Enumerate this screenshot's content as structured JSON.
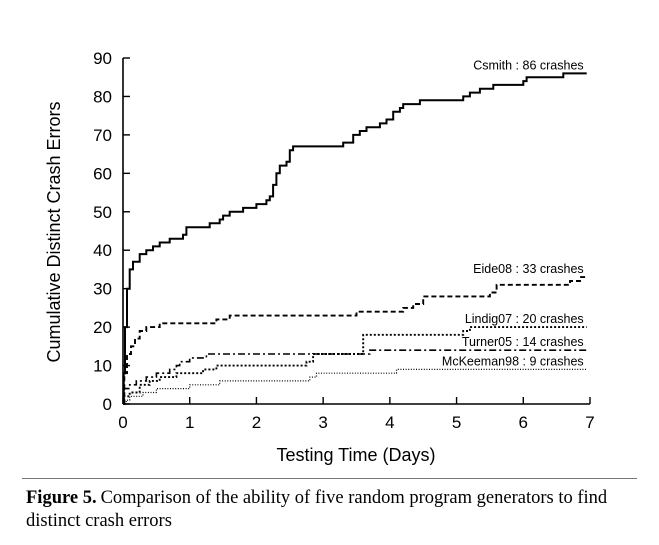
{
  "chart_data": {
    "type": "line",
    "xlabel": "Testing Time (Days)",
    "ylabel": "Cumulative Distinct Crash Errors",
    "xlim": [
      0,
      7
    ],
    "ylim": [
      0,
      90
    ],
    "xticks": [
      0,
      1,
      2,
      3,
      4,
      5,
      6,
      7
    ],
    "yticks": [
      0,
      10,
      20,
      30,
      40,
      50,
      60,
      70,
      80,
      90
    ],
    "grid": false,
    "legend": "inline labels at end of each series",
    "series": [
      {
        "name": "Csmith : 86 crashes",
        "style": "solid",
        "points": [
          [
            0,
            0
          ],
          [
            0.01,
            8
          ],
          [
            0.03,
            20
          ],
          [
            0.06,
            30
          ],
          [
            0.1,
            35
          ],
          [
            0.15,
            37
          ],
          [
            0.25,
            39
          ],
          [
            0.35,
            40
          ],
          [
            0.45,
            41
          ],
          [
            0.55,
            42
          ],
          [
            0.6,
            42
          ],
          [
            0.7,
            43
          ],
          [
            0.85,
            43
          ],
          [
            0.9,
            44
          ],
          [
            0.95,
            46
          ],
          [
            1.3,
            46
          ],
          [
            1.3,
            47
          ],
          [
            1.45,
            48
          ],
          [
            1.5,
            49
          ],
          [
            1.6,
            50
          ],
          [
            1.8,
            51
          ],
          [
            1.9,
            51
          ],
          [
            2.0,
            52
          ],
          [
            2.15,
            53
          ],
          [
            2.2,
            54
          ],
          [
            2.25,
            57
          ],
          [
            2.3,
            60
          ],
          [
            2.35,
            62
          ],
          [
            2.45,
            63
          ],
          [
            2.5,
            66
          ],
          [
            2.55,
            67
          ],
          [
            3.2,
            67
          ],
          [
            3.3,
            68
          ],
          [
            3.45,
            70
          ],
          [
            3.55,
            71
          ],
          [
            3.65,
            72
          ],
          [
            3.85,
            73
          ],
          [
            3.95,
            74
          ],
          [
            4.05,
            76
          ],
          [
            4.15,
            77
          ],
          [
            4.2,
            78
          ],
          [
            4.45,
            79
          ],
          [
            5.0,
            79
          ],
          [
            5.1,
            80
          ],
          [
            5.2,
            81
          ],
          [
            5.35,
            82
          ],
          [
            5.45,
            82
          ],
          [
            5.55,
            83
          ],
          [
            6.0,
            84
          ],
          [
            6.05,
            85
          ],
          [
            6.5,
            85
          ],
          [
            6.6,
            86
          ],
          [
            6.95,
            86
          ]
        ]
      },
      {
        "name": "Eide08 : 33 crashes",
        "style": "dashed",
        "points": [
          [
            0,
            0
          ],
          [
            0.02,
            8
          ],
          [
            0.06,
            13
          ],
          [
            0.12,
            15
          ],
          [
            0.18,
            17
          ],
          [
            0.25,
            19
          ],
          [
            0.35,
            20
          ],
          [
            0.55,
            21
          ],
          [
            1.3,
            21
          ],
          [
            1.4,
            22
          ],
          [
            1.6,
            23
          ],
          [
            3.4,
            23
          ],
          [
            3.5,
            24
          ],
          [
            4.2,
            25
          ],
          [
            4.35,
            26
          ],
          [
            4.5,
            28
          ],
          [
            5.5,
            29
          ],
          [
            5.6,
            31
          ],
          [
            6.6,
            31
          ],
          [
            6.7,
            32
          ],
          [
            6.85,
            33
          ],
          [
            6.95,
            33
          ]
        ]
      },
      {
        "name": "Lindig07 : 20 crashes",
        "style": "dotted",
        "points": [
          [
            0,
            0
          ],
          [
            0.02,
            2
          ],
          [
            0.1,
            3
          ],
          [
            0.25,
            5
          ],
          [
            0.4,
            6
          ],
          [
            0.55,
            7
          ],
          [
            0.7,
            7
          ],
          [
            0.8,
            8
          ],
          [
            1.0,
            8
          ],
          [
            1.2,
            9
          ],
          [
            1.3,
            9
          ],
          [
            1.4,
            10
          ],
          [
            2.7,
            10
          ],
          [
            2.75,
            11
          ],
          [
            2.85,
            13
          ],
          [
            3.55,
            13
          ],
          [
            3.6,
            18
          ],
          [
            5.0,
            18
          ],
          [
            5.1,
            19
          ],
          [
            5.2,
            20
          ],
          [
            6.95,
            20
          ]
        ]
      },
      {
        "name": "Turner05 : 14 crashes",
        "style": "dashdot",
        "points": [
          [
            0,
            0
          ],
          [
            0.02,
            4
          ],
          [
            0.1,
            5
          ],
          [
            0.2,
            6
          ],
          [
            0.35,
            7
          ],
          [
            0.5,
            8
          ],
          [
            0.7,
            9
          ],
          [
            0.8,
            10
          ],
          [
            0.85,
            11
          ],
          [
            1.0,
            12
          ],
          [
            1.25,
            13
          ],
          [
            3.6,
            13
          ],
          [
            3.7,
            14
          ],
          [
            6.95,
            14
          ]
        ]
      },
      {
        "name": "McKeeman98 : 9 crashes",
        "style": "finedotted",
        "points": [
          [
            0,
            0
          ],
          [
            0.05,
            1
          ],
          [
            0.1,
            2
          ],
          [
            0.3,
            3
          ],
          [
            0.5,
            4
          ],
          [
            0.95,
            4
          ],
          [
            1.0,
            5
          ],
          [
            1.4,
            5
          ],
          [
            1.45,
            6
          ],
          [
            2.75,
            6
          ],
          [
            2.8,
            7
          ],
          [
            2.9,
            8
          ],
          [
            4.0,
            8
          ],
          [
            4.1,
            9
          ],
          [
            6.95,
            9
          ]
        ]
      }
    ]
  },
  "caption": {
    "figure_label": "Figure 5.",
    "text": "Comparison of the ability of five random program generators to find distinct crash errors"
  }
}
